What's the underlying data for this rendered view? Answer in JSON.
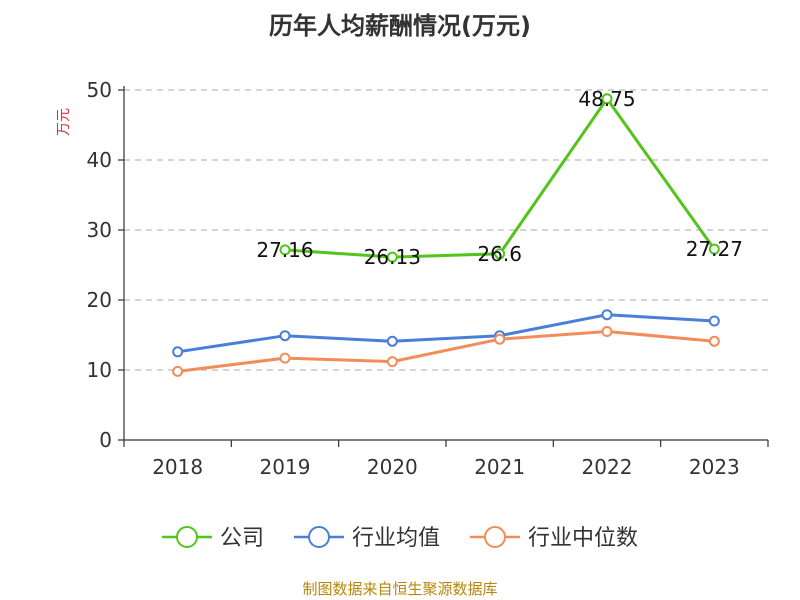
{
  "chart_data": {
    "type": "line",
    "title": "历年人均薪酬情况(万元)",
    "ylabel": "万元",
    "xlabel": "",
    "categories": [
      "2018",
      "2019",
      "2020",
      "2021",
      "2022",
      "2023"
    ],
    "ylim": [
      0,
      50
    ],
    "yticks": [
      0,
      10,
      20,
      30,
      40,
      50
    ],
    "grid": "horizontal-dashed",
    "legend": "bottom",
    "series": [
      {
        "name": "公司",
        "color": "#52c41a",
        "values": [
          null,
          27.16,
          26.13,
          26.6,
          48.75,
          27.27
        ],
        "labels": [
          "",
          "27.16",
          "26.13",
          "26.6",
          "48.75",
          "27.27"
        ]
      },
      {
        "name": "行业均值",
        "color": "#4a7fd8",
        "values": [
          12.6,
          14.9,
          14.1,
          14.9,
          17.9,
          17.0
        ]
      },
      {
        "name": "行业中位数",
        "color": "#f28c5a",
        "values": [
          9.8,
          11.7,
          11.2,
          14.4,
          15.5,
          14.1
        ]
      }
    ]
  },
  "footer": {
    "source": "制图数据来自恒生聚源数据库"
  }
}
